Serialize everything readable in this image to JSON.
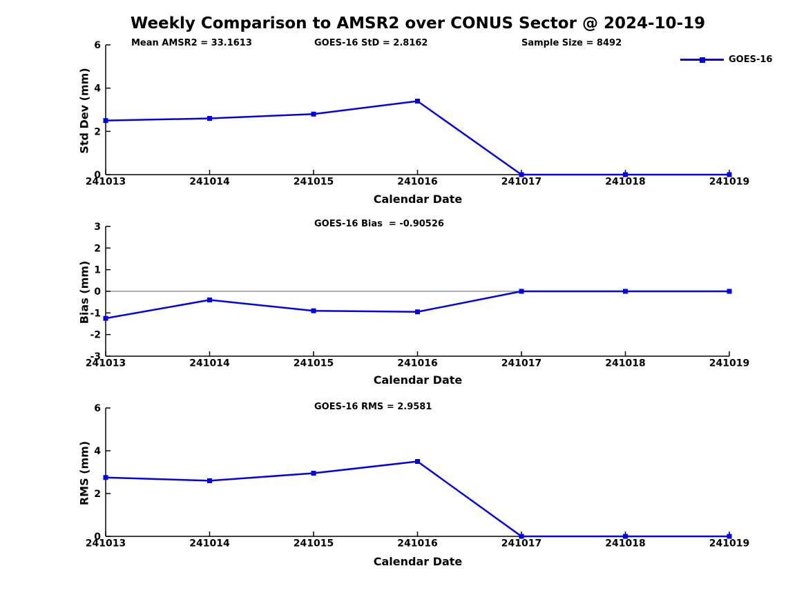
{
  "title": "Weekly Comparison to AMSR2 over CONUS Sector @ 2024-10-19",
  "colors": {
    "line": "#0000EE",
    "axis": "#000000",
    "zero_line": "#808080",
    "text": "#000000"
  },
  "legend": {
    "position": "top-right-outside"
  },
  "chart_data": [
    {
      "type": "line",
      "name": "stddev",
      "x": [
        "241013",
        "241014",
        "241015",
        "241016",
        "241017",
        "241018",
        "241019"
      ],
      "series": [
        {
          "name": "GOES-16",
          "values": [
            2.5,
            2.6,
            2.8,
            3.4,
            0,
            0,
            0
          ]
        }
      ],
      "title": "",
      "xlabel": "Calendar Date",
      "ylabel": "Std Dev (mm)",
      "ylim": [
        0,
        6
      ],
      "yticks": [
        0,
        2,
        4,
        6
      ],
      "grid": false,
      "zero_line": false,
      "marker": "square",
      "annotations": [
        "Mean AMSR2 = 33.1613",
        "GOES-16 StD = 2.8162",
        "Sample Size = 8492"
      ]
    },
    {
      "type": "line",
      "name": "bias",
      "x": [
        "241013",
        "241014",
        "241015",
        "241016",
        "241017",
        "241018",
        "241019"
      ],
      "series": [
        {
          "name": "GOES-16",
          "values": [
            -1.25,
            -0.4,
            -0.9,
            -0.95,
            0,
            0,
            0
          ]
        }
      ],
      "title": "",
      "xlabel": "Calendar Date",
      "ylabel": "Bias (mm)",
      "ylim": [
        -3,
        3
      ],
      "yticks": [
        -3,
        -2,
        -1,
        0,
        1,
        2,
        3
      ],
      "grid": false,
      "zero_line": true,
      "marker": "square",
      "annotations": [
        "GOES-16 Bias  = -0.90526"
      ]
    },
    {
      "type": "line",
      "name": "rms",
      "x": [
        "241013",
        "241014",
        "241015",
        "241016",
        "241017",
        "241018",
        "241019"
      ],
      "series": [
        {
          "name": "GOES-16",
          "values": [
            2.75,
            2.6,
            2.95,
            3.5,
            0,
            0,
            0
          ]
        }
      ],
      "title": "",
      "xlabel": "Calendar Date",
      "ylabel": "RMS (mm)",
      "ylim": [
        0,
        6
      ],
      "yticks": [
        0,
        2,
        4,
        6
      ],
      "grid": false,
      "zero_line": false,
      "marker": "square",
      "annotations": [
        "GOES-16 RMS = 2.9581"
      ]
    }
  ]
}
